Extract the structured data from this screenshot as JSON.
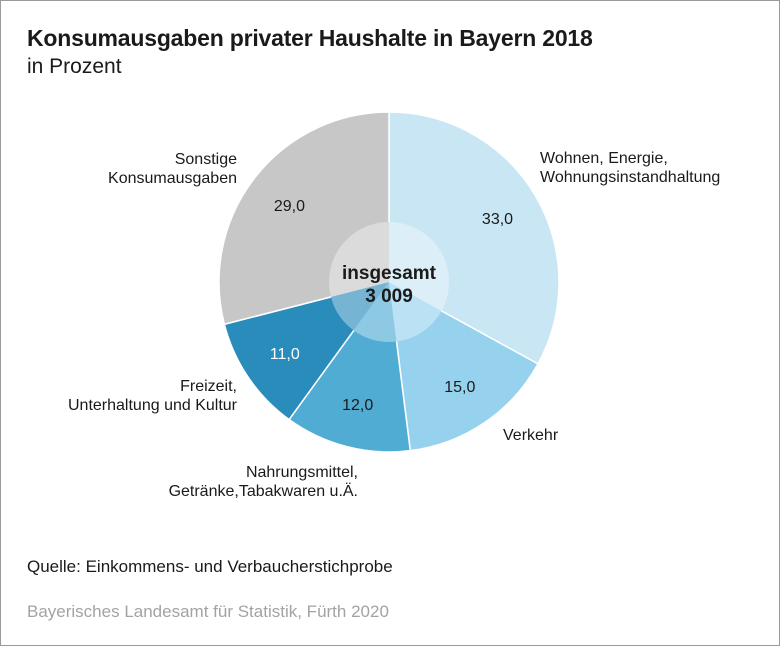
{
  "header": {
    "title": "Konsumausgaben privater Haushalte in Bayern 2018",
    "subtitle": "in Prozent"
  },
  "footer": {
    "source": "Quelle: Einkommens- und Verbaucherstichprobe",
    "publisher": "Bayerisches Landesamt für Statistik, Fürth 2020"
  },
  "chart_data": {
    "type": "pie",
    "title": "Konsumausgaben privater Haushalte in Bayern 2018",
    "subtitle": "in Prozent",
    "center_label": "insgesamt",
    "center_value": "3 009",
    "slices": [
      {
        "label": [
          "Wohnen, Energie,",
          "Wohnungsinstandhaltung"
        ],
        "value": 33.0,
        "display": "33,0",
        "color": "#c9e6f4"
      },
      {
        "label": [
          "Verkehr"
        ],
        "value": 15.0,
        "display": "15,0",
        "color": "#96d2ee"
      },
      {
        "label": [
          "Nahrungsmittel,",
          "Getränke,Tabakwaren u.Ä."
        ],
        "value": 12.0,
        "display": "12,0",
        "color": "#50acd3"
      },
      {
        "label": [
          "Freizeit,",
          "Unterhaltung und Kultur"
        ],
        "value": 11.0,
        "display": "11,0",
        "color": "#2a8cba"
      },
      {
        "label": [
          "Sonstige",
          "Konsumausgaben"
        ],
        "value": 29.0,
        "display": "29,0",
        "color": "#c7c7c7"
      }
    ]
  }
}
